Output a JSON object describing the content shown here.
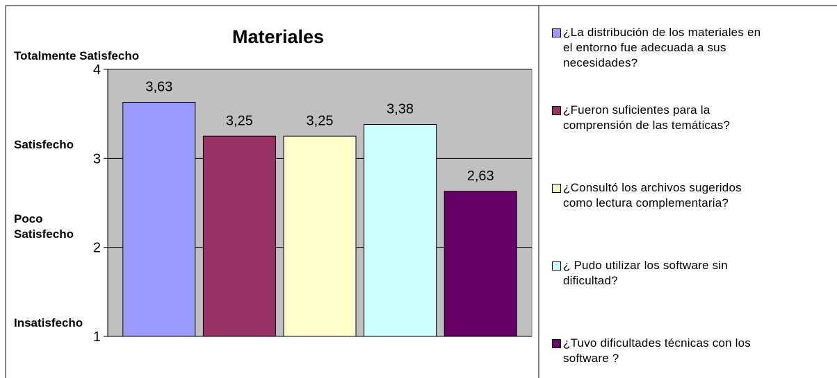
{
  "chart_data": {
    "type": "bar",
    "title": "Materiales",
    "series": [
      {
        "name": "¿La distribución de los materiales en\nel entorno fue adecuada a sus\nnecesidades?",
        "color": "#9999ff",
        "values": [
          3.63
        ],
        "value_labels": [
          "3,63"
        ]
      },
      {
        "name": "¿Fueron suficientes para la\ncomprensión de las temáticas?",
        "color": "#993366",
        "values": [
          3.25
        ],
        "value_labels": [
          "3,25"
        ]
      },
      {
        "name": "¿Consultó los archivos sugeridos\ncomo lectura complementaria?",
        "color": "#ffffcc",
        "values": [
          3.25
        ],
        "value_labels": [
          "3,25"
        ]
      },
      {
        "name": "¿ Pudo utilizar  los software sin\ndificultad?",
        "color": "#ccffff",
        "values": [
          3.38
        ],
        "value_labels": [
          "3,38"
        ]
      },
      {
        "name": "¿Tuvo dificultades técnicas con los\nsoftware ?",
        "color": "#660066",
        "values": [
          2.63
        ],
        "value_labels": [
          "2,63"
        ]
      }
    ],
    "ylim": [
      1,
      4
    ],
    "yticks": [
      1,
      2,
      3,
      4
    ],
    "grid": true,
    "y_level_labels": [
      "Insatisfecho",
      "Poco\nSatisfecho",
      "Satisfecho",
      "Totalmente Satisfecho"
    ],
    "legend": "right"
  }
}
